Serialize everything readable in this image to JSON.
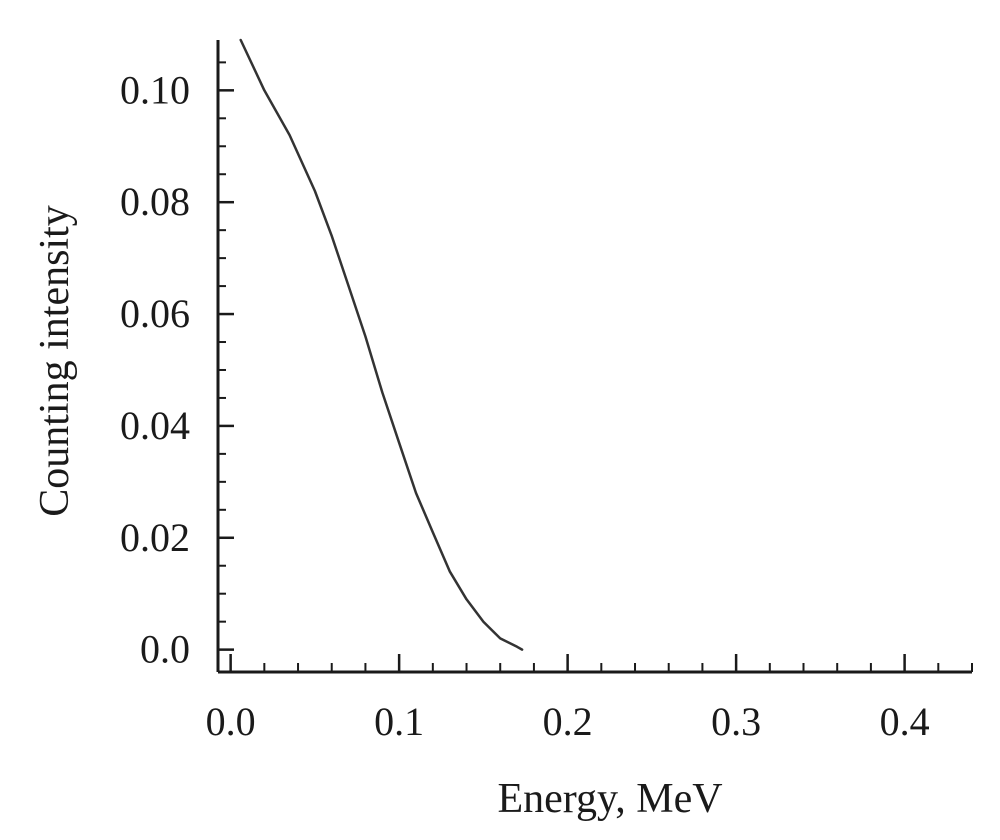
{
  "chart_data": {
    "type": "line",
    "title": "",
    "xlabel": "Energy, MeV",
    "ylabel": "Counting intensity",
    "xlim": [
      -0.0075,
      0.44
    ],
    "ylim": [
      -0.004,
      0.109
    ],
    "xticks": [
      0.0,
      0.1,
      0.2,
      0.3,
      0.4
    ],
    "xtick_labels": [
      "0.0",
      "0.1",
      "0.2",
      "0.3",
      "0.4"
    ],
    "yticks": [
      0.0,
      0.02,
      0.04,
      0.06,
      0.08,
      0.1
    ],
    "ytick_labels": [
      "0.0",
      "0.02",
      "0.04",
      "0.06",
      "0.08",
      "0.10"
    ],
    "grid": false,
    "series": [
      {
        "color": "#333333",
        "x": [
          0.006,
          0.02,
          0.035,
          0.05,
          0.06,
          0.07,
          0.08,
          0.09,
          0.1,
          0.11,
          0.12,
          0.13,
          0.14,
          0.15,
          0.16,
          0.17,
          0.173
        ],
        "y": [
          0.109,
          0.1,
          0.092,
          0.082,
          0.074,
          0.065,
          0.056,
          0.046,
          0.037,
          0.028,
          0.021,
          0.014,
          0.009,
          0.005,
          0.002,
          0.0005,
          0.0
        ]
      }
    ]
  }
}
